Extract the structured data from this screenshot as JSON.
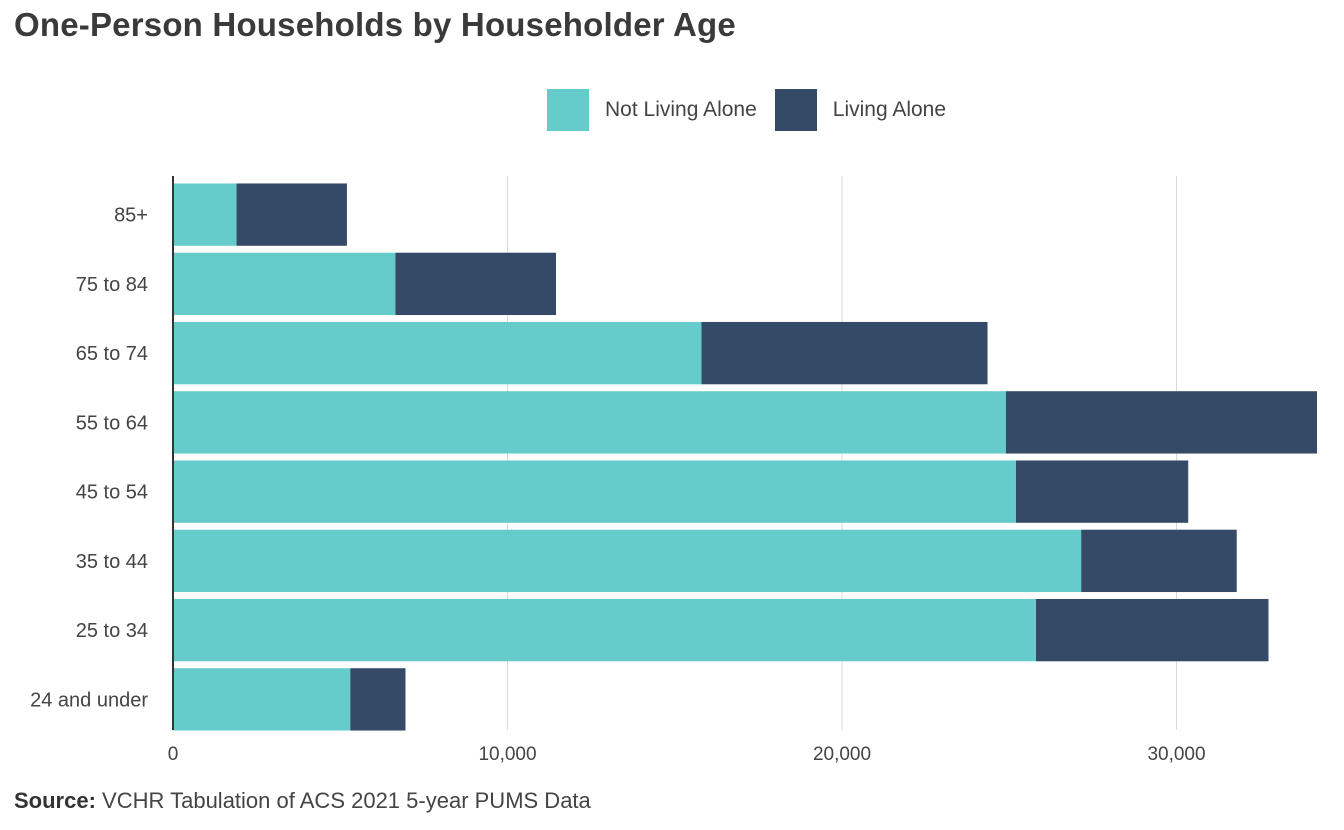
{
  "title": "One-Person Households by Householder Age",
  "source": {
    "label": "Source:",
    "text": "VCHR Tabulation of ACS 2021 5-year PUMS Data"
  },
  "colors": {
    "not_living_alone": "#66cccb",
    "living_alone": "#344a66",
    "grid": "#d9d9d9",
    "axis": "#333333",
    "text": "#444444"
  },
  "chart_data": {
    "type": "bar",
    "orientation": "horizontal",
    "stacked": true,
    "categories": [
      "85+",
      "75 to 84",
      "65 to 74",
      "55 to 64",
      "45 to 54",
      "35 to 44",
      "25 to 34",
      "24 and under"
    ],
    "series": [
      {
        "name": "Not Living Alone",
        "color": "#66cccb",
        "values": [
          1900,
          6650,
          15800,
          24900,
          25200,
          27150,
          25800,
          5300
        ]
      },
      {
        "name": "Living Alone",
        "color": "#344a66",
        "values": [
          3300,
          4800,
          8550,
          9300,
          5150,
          4650,
          6950,
          1650
        ]
      }
    ],
    "xlim": [
      0,
      34200
    ],
    "xticks": [
      0,
      10000,
      20000,
      30000
    ],
    "xtick_labels": [
      "0",
      "10,000",
      "20,000",
      "30,000"
    ],
    "grid": "vertical",
    "legend_position": "top-right"
  }
}
